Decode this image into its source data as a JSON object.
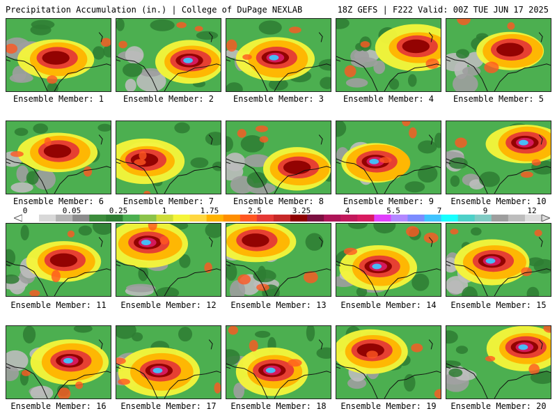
{
  "header": {
    "title": "Precipitation Accumulation (in.) | College of DuPage NEXLAB",
    "run_info": "18Z GEFS | F222 Valid: 00Z TUE JUN 17 2025"
  },
  "colorbar": {
    "tick_labels": [
      "0",
      "0.05",
      "0.25",
      "1",
      "1.75",
      "2.5",
      "3.25",
      "4",
      "5.5",
      "7",
      "9",
      "12"
    ],
    "colors": [
      "#ffffff",
      "#d8d8d8",
      "#b4b4b4",
      "#8c8c8c",
      "#3c8c3c",
      "#2e7d32",
      "#4caf50",
      "#8bc34a",
      "#cddc39",
      "#f5f53a",
      "#ffd740",
      "#ffb300",
      "#ff8f00",
      "#ff5722",
      "#e53935",
      "#c62828",
      "#8e0000",
      "#7b1040",
      "#ad1457",
      "#c2185b",
      "#d81b60",
      "#e040fb",
      "#b388ff",
      "#7c8cff",
      "#40c4ff",
      "#18ffff",
      "#4dd0c8",
      "#80cbc4",
      "#9e9e9e",
      "#bdbdbd",
      "#dddddd"
    ]
  },
  "members": [
    {
      "label": "Ensemble Member: 1"
    },
    {
      "label": "Ensemble Member: 2"
    },
    {
      "label": "Ensemble Member: 3"
    },
    {
      "label": "Ensemble Member: 4"
    },
    {
      "label": "Ensemble Member: 5"
    },
    {
      "label": "Ensemble Member: 6"
    },
    {
      "label": "Ensemble Member: 7"
    },
    {
      "label": "Ensemble Member: 8"
    },
    {
      "label": "Ensemble Member: 9"
    },
    {
      "label": "Ensemble Member: 10"
    },
    {
      "label": "Ensemble Member: 11"
    },
    {
      "label": "Ensemble Member: 12"
    },
    {
      "label": "Ensemble Member: 13"
    },
    {
      "label": "Ensemble Member: 14"
    },
    {
      "label": "Ensemble Member: 15"
    },
    {
      "label": "Ensemble Member: 16"
    },
    {
      "label": "Ensemble Member: 17"
    },
    {
      "label": "Ensemble Member: 18"
    },
    {
      "label": "Ensemble Member: 19"
    },
    {
      "label": "Ensemble Member: 20"
    }
  ]
}
